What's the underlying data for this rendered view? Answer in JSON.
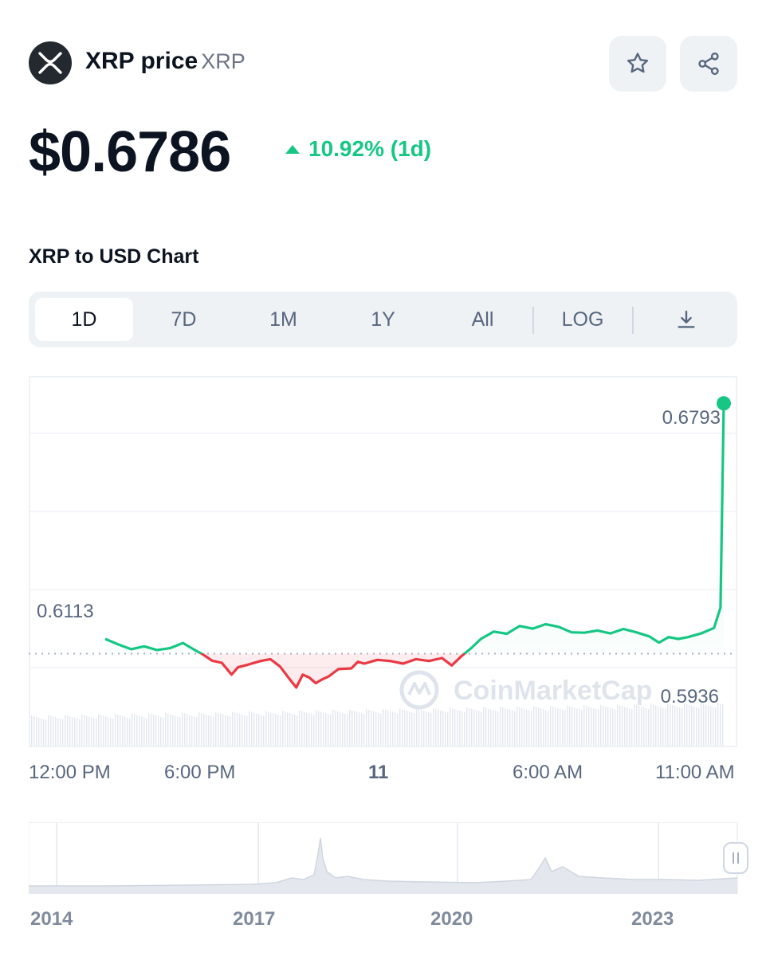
{
  "header": {
    "coin_name": "XRP price",
    "coin_symbol": "XRP",
    "logo_icon": "xrp-logo-icon",
    "favorite_icon": "star-icon",
    "share_icon": "share-icon"
  },
  "price": {
    "value": "$0.6786",
    "change": "10.92% (1d)",
    "change_direction": "up"
  },
  "chart_title": "XRP to USD Chart",
  "tabs": {
    "items": [
      "1D",
      "7D",
      "1M",
      "1Y",
      "All"
    ],
    "active": "1D",
    "log_label": "LOG",
    "download_icon": "download-icon"
  },
  "colors": {
    "up": "#16c784",
    "down": "#ea3943",
    "text": "#0d1421",
    "muted": "#58667e",
    "panel": "#eff2f5"
  },
  "chart_data": {
    "type": "line",
    "reference_price": 0.6113,
    "reference_label": "0.6113",
    "high_label": "0.6793",
    "low_label": "0.5936",
    "x_tick_labels": [
      "12:00 PM",
      "6:00 PM",
      "11",
      "6:00 AM",
      "11:00 AM"
    ],
    "ylim": [
      0.585,
      0.685
    ],
    "grid": true,
    "watermark": "CoinMarketCap",
    "points": [
      [
        0.0,
        0.6153
      ],
      [
        0.02,
        0.6138
      ],
      [
        0.04,
        0.6125
      ],
      [
        0.06,
        0.6133
      ],
      [
        0.08,
        0.6123
      ],
      [
        0.1,
        0.6128
      ],
      [
        0.12,
        0.6142
      ],
      [
        0.14,
        0.6121
      ],
      [
        0.15,
        0.6112
      ],
      [
        0.165,
        0.6094
      ],
      [
        0.18,
        0.6088
      ],
      [
        0.195,
        0.6056
      ],
      [
        0.205,
        0.6076
      ],
      [
        0.22,
        0.6083
      ],
      [
        0.24,
        0.6093
      ],
      [
        0.255,
        0.6098
      ],
      [
        0.27,
        0.6078
      ],
      [
        0.285,
        0.6043
      ],
      [
        0.295,
        0.6021
      ],
      [
        0.305,
        0.6056
      ],
      [
        0.315,
        0.6048
      ],
      [
        0.325,
        0.6033
      ],
      [
        0.335,
        0.6043
      ],
      [
        0.345,
        0.6051
      ],
      [
        0.36,
        0.6071
      ],
      [
        0.38,
        0.6073
      ],
      [
        0.39,
        0.6091
      ],
      [
        0.4,
        0.6086
      ],
      [
        0.42,
        0.6096
      ],
      [
        0.44,
        0.6093
      ],
      [
        0.46,
        0.6086
      ],
      [
        0.48,
        0.6098
      ],
      [
        0.5,
        0.6093
      ],
      [
        0.52,
        0.6101
      ],
      [
        0.535,
        0.6081
      ],
      [
        0.55,
        0.6106
      ],
      [
        0.565,
        0.6128
      ],
      [
        0.58,
        0.6153
      ],
      [
        0.6,
        0.6173
      ],
      [
        0.62,
        0.6167
      ],
      [
        0.64,
        0.6188
      ],
      [
        0.66,
        0.6181
      ],
      [
        0.68,
        0.6193
      ],
      [
        0.7,
        0.6186
      ],
      [
        0.72,
        0.6171
      ],
      [
        0.74,
        0.617
      ],
      [
        0.76,
        0.6176
      ],
      [
        0.78,
        0.6168
      ],
      [
        0.8,
        0.618
      ],
      [
        0.82,
        0.6171
      ],
      [
        0.84,
        0.616
      ],
      [
        0.855,
        0.6143
      ],
      [
        0.87,
        0.6158
      ],
      [
        0.885,
        0.6153
      ],
      [
        0.9,
        0.6158
      ],
      [
        0.92,
        0.6168
      ],
      [
        0.94,
        0.6183
      ],
      [
        0.95,
        0.6238
      ],
      [
        0.955,
        0.6793
      ]
    ],
    "navigator_x_labels": [
      "2014",
      "2017",
      "2020",
      "2023"
    ]
  }
}
